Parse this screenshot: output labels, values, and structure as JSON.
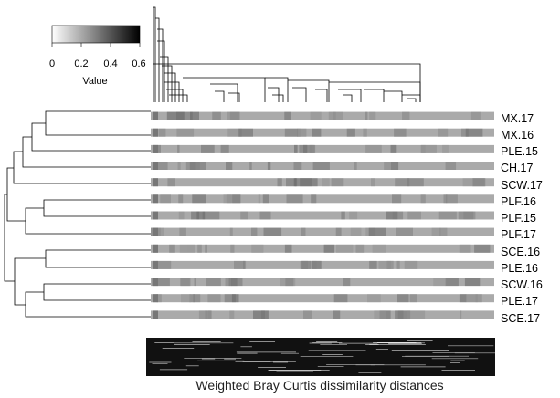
{
  "chart_data": {
    "type": "heatmap",
    "title": "",
    "xlabel": "Weighted Bray Curtis dissimilarity distances",
    "rows": [
      "MX.17",
      "MX.16",
      "PLE.15",
      "CH.17",
      "SCW.17",
      "PLF.16",
      "PLF.15",
      "PLF.17",
      "SCE.16",
      "PLE.16",
      "SCW.16",
      "PLE.17",
      "SCE.17"
    ],
    "value_range": [
      0,
      0.6
    ],
    "color_key": {
      "title": "Value",
      "ticks": [
        "0",
        "0.2",
        "0.4",
        "0.6"
      ],
      "low_color": "#ffffff",
      "high_color": "#000000"
    },
    "cell_default_value": 0.2,
    "row_dendrogram": "((((MX.17,MX.16),PLE.15),CH.17),SCW.17),((PLF.16,PLF.15),PLF.17),((SCE.16,PLE.16),((SCW.16,PLE.17),SCE.17))",
    "grid": false,
    "legend_position": "top-left"
  }
}
